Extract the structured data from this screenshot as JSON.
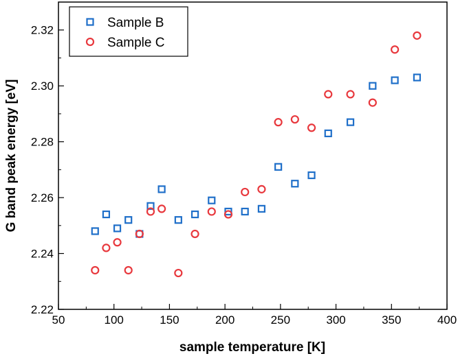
{
  "chart_data": {
    "type": "scatter",
    "xlabel": "sample temperature [K]",
    "ylabel": "G band peak energy [eV]",
    "xlim": [
      50,
      400
    ],
    "ylim": [
      2.22,
      2.33
    ],
    "xticks": [
      50,
      100,
      150,
      200,
      250,
      300,
      350,
      400
    ],
    "yticks": [
      2.22,
      2.24,
      2.26,
      2.28,
      2.3,
      2.32
    ],
    "xtick_labels": [
      "50",
      "100",
      "150",
      "200",
      "250",
      "300",
      "350",
      "400"
    ],
    "ytick_labels": [
      "2.22",
      "2.24",
      "2.26",
      "2.28",
      "2.30",
      "2.32"
    ],
    "grid": false,
    "legend_position": "top-left",
    "series": [
      {
        "name": "Sample B",
        "marker": "square",
        "color": "#1f6fc9",
        "points": [
          [
            83,
            2.248
          ],
          [
            93,
            2.254
          ],
          [
            103,
            2.249
          ],
          [
            113,
            2.252
          ],
          [
            123,
            2.247
          ],
          [
            133,
            2.257
          ],
          [
            143,
            2.263
          ],
          [
            158,
            2.252
          ],
          [
            173,
            2.254
          ],
          [
            188,
            2.259
          ],
          [
            203,
            2.255
          ],
          [
            218,
            2.255
          ],
          [
            233,
            2.256
          ],
          [
            248,
            2.271
          ],
          [
            263,
            2.265
          ],
          [
            278,
            2.268
          ],
          [
            293,
            2.283
          ],
          [
            313,
            2.287
          ],
          [
            333,
            2.3
          ],
          [
            353,
            2.302
          ],
          [
            373,
            2.303
          ]
        ]
      },
      {
        "name": "Sample C",
        "marker": "circle",
        "color": "#e8383d",
        "points": [
          [
            83,
            2.234
          ],
          [
            93,
            2.242
          ],
          [
            103,
            2.244
          ],
          [
            113,
            2.234
          ],
          [
            123,
            2.247
          ],
          [
            133,
            2.255
          ],
          [
            143,
            2.256
          ],
          [
            158,
            2.233
          ],
          [
            173,
            2.247
          ],
          [
            188,
            2.255
          ],
          [
            203,
            2.254
          ],
          [
            218,
            2.262
          ],
          [
            233,
            2.263
          ],
          [
            248,
            2.287
          ],
          [
            263,
            2.288
          ],
          [
            278,
            2.285
          ],
          [
            293,
            2.297
          ],
          [
            313,
            2.297
          ],
          [
            333,
            2.294
          ],
          [
            353,
            2.313
          ],
          [
            373,
            2.318
          ]
        ]
      }
    ]
  }
}
